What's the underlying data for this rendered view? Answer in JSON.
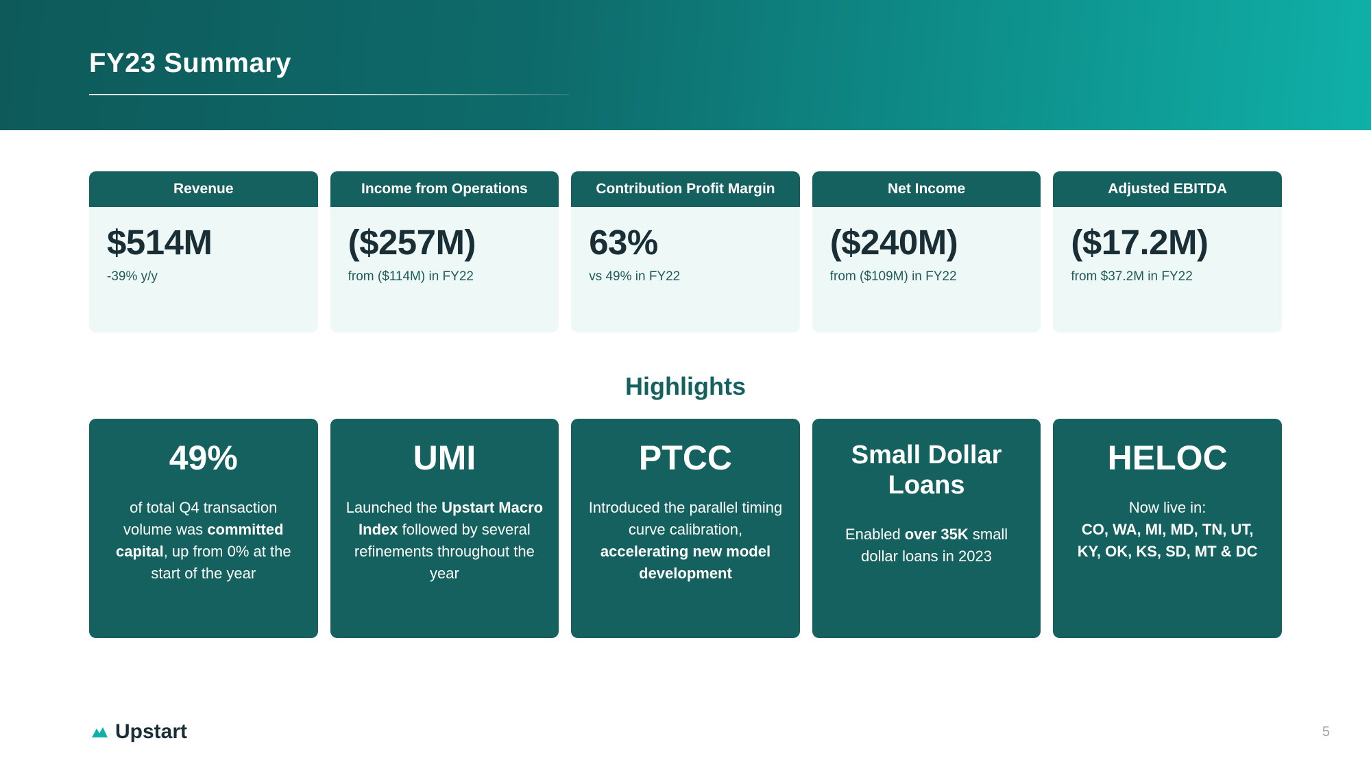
{
  "colors": {
    "header_gradient_start": "#0e5a5a",
    "header_gradient_end": "#0fb0a8",
    "card_header_bg": "#14615f",
    "card_body_bg": "#eef8f6",
    "highlight_bg": "#14615f",
    "text_dark": "#1a2e35",
    "text_teal": "#1f5a5a"
  },
  "header": {
    "title": "FY23 Summary"
  },
  "metrics": [
    {
      "label": "Revenue",
      "value": "$514M",
      "sub": "-39% y/y"
    },
    {
      "label": "Income from Operations",
      "value": "($257M)",
      "sub": "from ($114M) in FY22"
    },
    {
      "label": "Contribution Profit Margin",
      "value": "63%",
      "sub": "vs 49% in FY22"
    },
    {
      "label": "Net Income",
      "value": "($240M)",
      "sub": "from ($109M) in FY22"
    },
    {
      "label": "Adjusted EBITDA",
      "value": "($17.2M)",
      "sub": "from $37.2M in FY22"
    }
  ],
  "highlights_title": "Highlights",
  "highlights": [
    {
      "title": "49%",
      "title_size": "big",
      "body_html": "of total Q4 transaction volume was <b>committed capital</b>, up from 0% at the start of the year"
    },
    {
      "title": "UMI",
      "title_size": "big",
      "body_html": "Launched the <b>Upstart Macro Index</b> followed by several refinements throughout the year"
    },
    {
      "title": "PTCC",
      "title_size": "big",
      "body_html": "Introduced the parallel timing curve calibration, <b>accelerating new model development</b>"
    },
    {
      "title": "Small Dollar Loans",
      "title_size": "small",
      "body_html": "Enabled <b>over 35K</b> small dollar loans in 2023"
    },
    {
      "title": "HELOC",
      "title_size": "big",
      "body_html": "Now live in:<br><b>CO, WA, MI, MD, TN, UT, KY, OK, KS, SD, MT &amp; DC</b>"
    }
  ],
  "footer": {
    "brand": "Upstart",
    "page": "5"
  }
}
